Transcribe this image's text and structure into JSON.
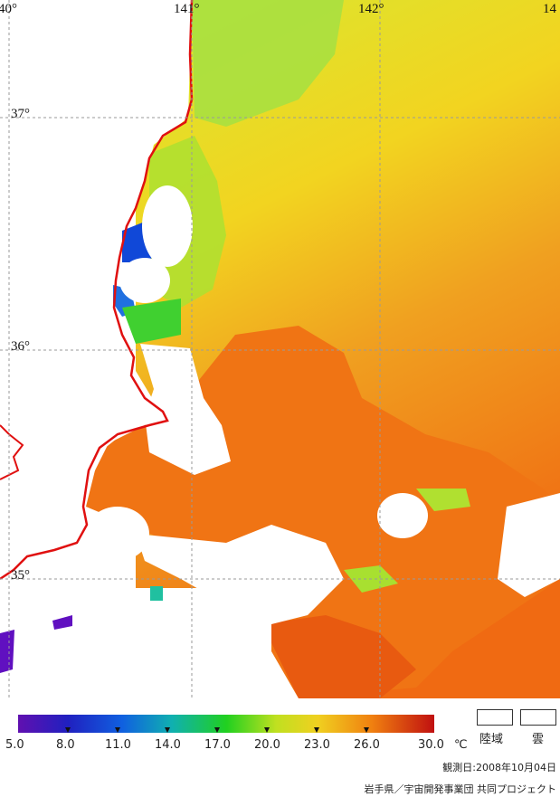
{
  "map": {
    "longitude_labels": [
      "40°",
      "141°",
      "142°",
      "14"
    ],
    "latitude_labels": [
      "37°",
      "36°",
      "35°"
    ],
    "colors": {
      "coast": "#e01010",
      "grid": "#9a9a9a",
      "sst_warm": "#f07a10",
      "sst_mid": "#f0d020",
      "sst_cool": "#a8e030",
      "sst_cold": "#1040d0"
    }
  },
  "colorbar": {
    "unit": "℃",
    "ticks": [
      "5.0",
      "8.0",
      "11.0",
      "14.0",
      "17.0",
      "20.0",
      "23.0",
      "26.0",
      "30.0"
    ]
  },
  "legend": {
    "land_label": "陸域",
    "cloud_label": "雲"
  },
  "footer": {
    "observation_date": "観測日:2008年10月04日",
    "credit": "岩手県／宇宙開発事業団 共同プロジェクト"
  }
}
